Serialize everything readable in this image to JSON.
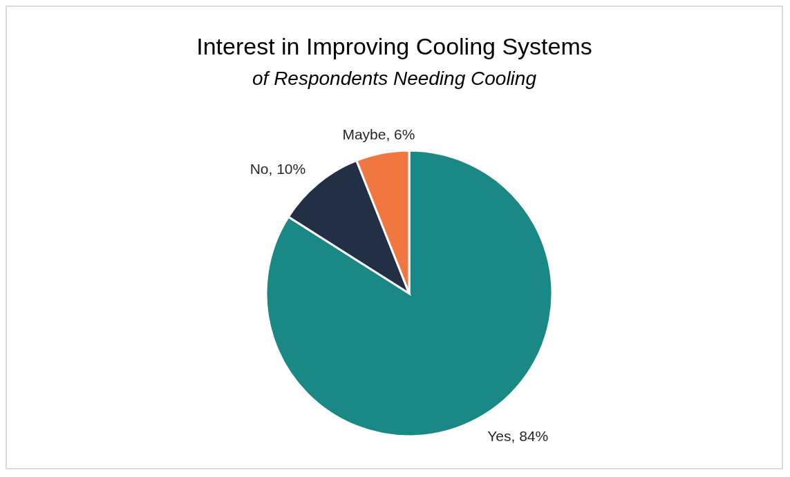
{
  "chart_data": {
    "type": "pie",
    "title": "Interest in Improving Cooling Systems",
    "subtitle": "of Respondents Needing Cooling",
    "categories": [
      "Yes",
      "No",
      "Maybe"
    ],
    "values": [
      84,
      10,
      6
    ],
    "colors": [
      "#1a8884",
      "#222f45",
      "#f07840"
    ],
    "value_labels": [
      ", 84%",
      ", 10%",
      ", 6%"
    ],
    "legend": false
  }
}
